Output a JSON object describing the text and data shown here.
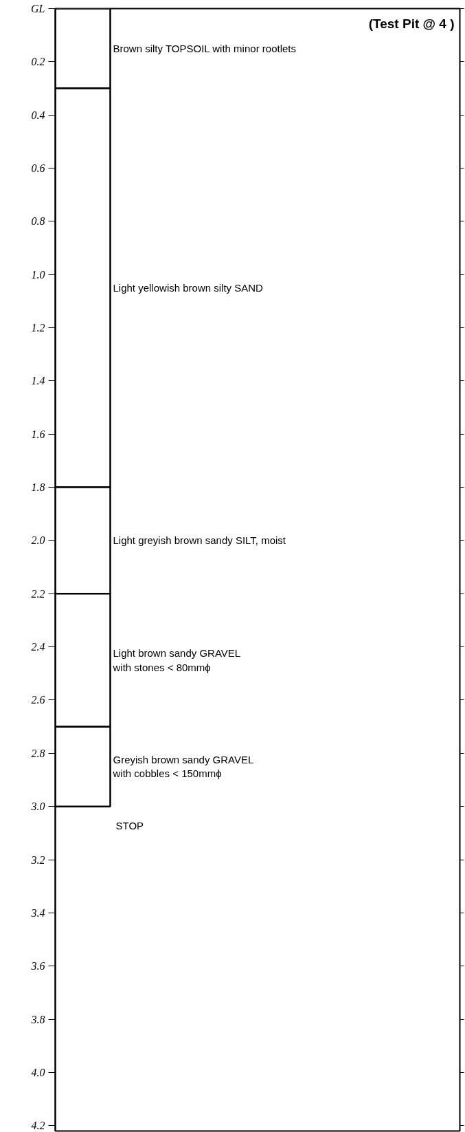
{
  "chart_data": {
    "type": "bar",
    "stacked": true,
    "title": "(Test Pit @ 4 )",
    "categories": [
      null
    ],
    "series": [
      {
        "name": "Brown silty  TOPSOIL with minor rootlets",
        "color": "#ffffff",
        "values": [
          0.3
        ]
      },
      {
        "name": "Light yellowish brown silty SAND",
        "color": "#ffffff",
        "values": [
          1.5
        ]
      },
      {
        "name": "Light greyish brown sandy SILT, moist",
        "color": "#ffffff",
        "values": [
          0.4
        ]
      },
      {
        "name": "Light brown sandy GRAVEL\nwith stones < 80mmϕ",
        "color": "#ffffff",
        "values": [
          0.5
        ]
      },
      {
        "name": "Greyish brown sandy GRAVEL\nwith cobbles < 150mmϕ",
        "color": "#ffffff",
        "values": [
          0.3
        ]
      }
    ],
    "annotations": [
      "STOP"
    ],
    "ylim": [
      4.22,
      0
    ],
    "yticks": [
      {
        "value": 0,
        "label": "GL"
      },
      0.2,
      0.4,
      0.6,
      0.8,
      {
        "value": 1,
        "label": "1.0"
      },
      1.2,
      1.4,
      1.6,
      1.8,
      {
        "value": 2,
        "label": "2.0"
      },
      2.2,
      2.4,
      2.6,
      2.8,
      {
        "value": 3,
        "label": "3.0"
      },
      3.2,
      3.4,
      3.6,
      3.8,
      {
        "value": 4,
        "label": "4.0"
      },
      4.2
    ],
    "grid": false
  }
}
